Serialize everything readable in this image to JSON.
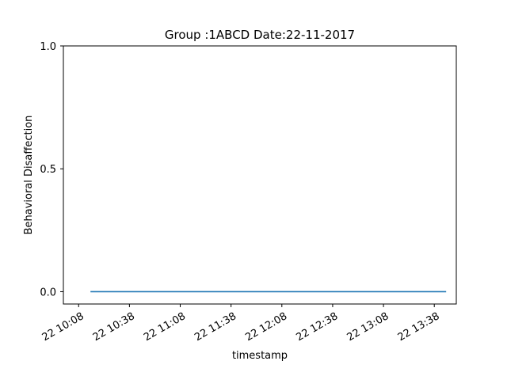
{
  "chart_data": {
    "type": "line",
    "title": "Group :1ABCD Date:22-11-2017",
    "xlabel": "timestamp",
    "ylabel": "Behavioral Disaffection",
    "x_type": "time",
    "x_ticks": [
      "22 10:08",
      "22 10:38",
      "22 11:08",
      "22 11:38",
      "22 12:08",
      "22 12:38",
      "22 13:08",
      "22 13:38"
    ],
    "x_tick_minutes": [
      608,
      638,
      668,
      698,
      728,
      758,
      788,
      818
    ],
    "xlim_minutes": [
      599,
      831
    ],
    "y_ticks": [
      "0.0",
      "0.5",
      "1.0"
    ],
    "y_tick_values": [
      0.0,
      0.5,
      1.0
    ],
    "ylim": [
      -0.05,
      1.0
    ],
    "grid": false,
    "series": [
      {
        "color": "#1f77b4",
        "x_minutes": [
          615,
          825
        ],
        "y": [
          0.0,
          0.0
        ]
      }
    ]
  }
}
